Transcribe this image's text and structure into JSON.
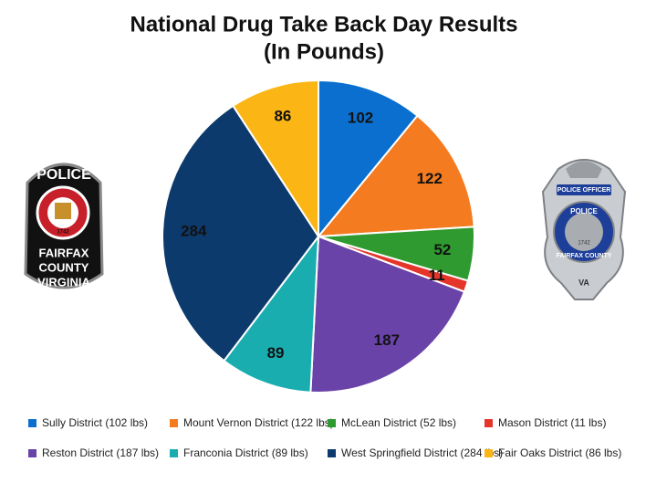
{
  "chart_data": {
    "type": "pie",
    "title": "National Drug Take Back Day Results",
    "subtitle": "(In Pounds)",
    "categories": [
      "Sully District (102 lbs)",
      "Mount Vernon District (122 lbs)",
      "McLean District (52 lbs)",
      "Mason District (11 lbs)",
      "Reston District (187 lbs)",
      "Franconia District (89 lbs)",
      "West Springfield District (284 lbs)",
      "Fair Oaks District (86 lbs)"
    ],
    "values": [
      102,
      122,
      52,
      11,
      187,
      89,
      284,
      86
    ],
    "colors": [
      "#0b6fcf",
      "#f47b20",
      "#2f9a2f",
      "#e5352b",
      "#6a43a9",
      "#1aadb0",
      "#0d3a6d",
      "#fbb615"
    ],
    "legend": "bottom"
  },
  "left_badge": {
    "title": "POLICE",
    "year": "1742",
    "lines": [
      "FAIRFAX",
      "COUNTY",
      "VIRGINIA"
    ]
  },
  "right_badge": {
    "title": "POLICE OFFICER",
    "band": "POLICE",
    "county": "FAIRFAX COUNTY",
    "year": "1742",
    "state": "VA"
  }
}
